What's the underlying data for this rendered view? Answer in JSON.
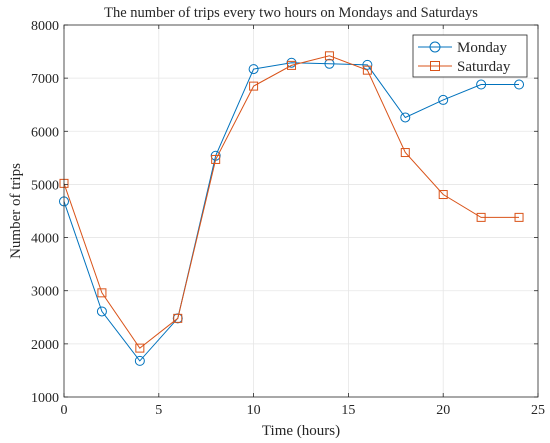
{
  "chart_data": {
    "type": "line",
    "title": "The number of trips every two hours on Mondays and Saturdays",
    "xlabel": "Time (hours)",
    "ylabel": "Number of trips",
    "xlim": [
      0,
      25
    ],
    "ylim": [
      1000,
      8000
    ],
    "xticks": [
      0,
      5,
      10,
      15,
      20,
      25
    ],
    "yticks": [
      1000,
      2000,
      3000,
      4000,
      5000,
      6000,
      7000,
      8000
    ],
    "grid": true,
    "legend_position": "top-right",
    "x": [
      0,
      2,
      4,
      6,
      8,
      10,
      12,
      14,
      16,
      18,
      20,
      22,
      24
    ],
    "series": [
      {
        "name": "Monday",
        "color": "#0072BD",
        "marker": "circle",
        "values": [
          4680,
          2610,
          1680,
          2480,
          5540,
          7170,
          7290,
          7270,
          7250,
          6260,
          6590,
          6880,
          6880
        ]
      },
      {
        "name": "Saturday",
        "color": "#D95319",
        "marker": "square",
        "values": [
          5020,
          2960,
          1920,
          2480,
          5470,
          6850,
          7240,
          7420,
          7150,
          5600,
          4810,
          4380,
          4380
        ]
      }
    ]
  }
}
